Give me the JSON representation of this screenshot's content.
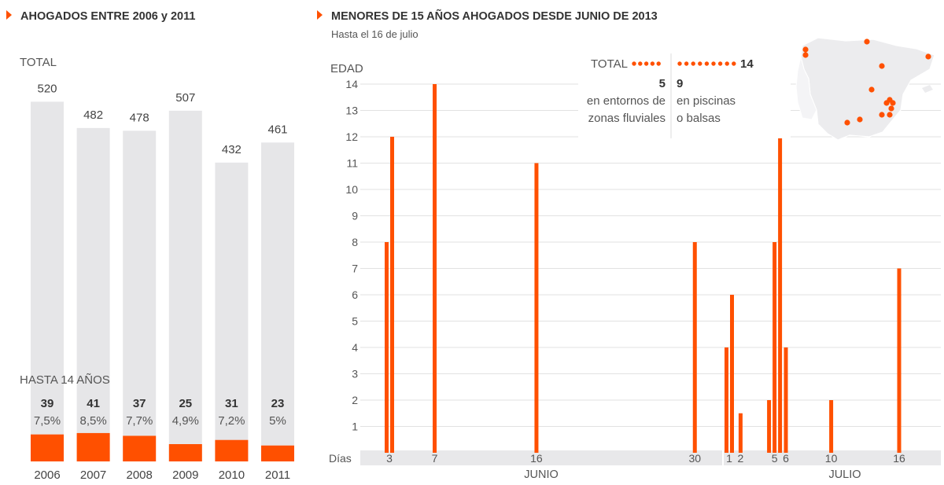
{
  "accent": "#ff5000",
  "bar_bg": "#e6e6e8",
  "chart_data": [
    {
      "type": "bar",
      "title": "AHOGADOS ENTRE 2006 y 2011",
      "total_label": "TOTAL",
      "minor_label": "HASTA 14 AÑOS",
      "categories": [
        "2006",
        "2007",
        "2008",
        "2009",
        "2010",
        "2011"
      ],
      "series": [
        {
          "name": "TOTAL",
          "values": [
            520,
            482,
            478,
            507,
            432,
            461
          ]
        },
        {
          "name": "HASTA 14 AÑOS",
          "values": [
            39,
            41,
            37,
            25,
            31,
            23
          ]
        }
      ],
      "percent_labels": [
        "7,5%",
        "8,5%",
        "7,7%",
        "4,9%",
        "7,2%",
        "5%"
      ],
      "value_labels": [
        "520",
        "482",
        "478",
        "507",
        "432",
        "461"
      ],
      "minor_value_labels": [
        "39",
        "41",
        "37",
        "25",
        "31",
        "23"
      ]
    },
    {
      "type": "bar",
      "title": "MENORES DE 15 AÑOS AHOGADOS DESDE JUNIO DE 2013",
      "subtitle": "Hasta el 16 de julio",
      "ylabel": "EDAD",
      "xlabel": "Días",
      "ylim": [
        0,
        14
      ],
      "yticks": [
        "1",
        "2",
        "3",
        "4",
        "5",
        "6",
        "7",
        "8",
        "9",
        "10",
        "11",
        "12",
        "13",
        "14"
      ],
      "months": [
        {
          "label": "JUNIO"
        },
        {
          "label": "JULIO"
        }
      ],
      "x_ticks": [
        {
          "month": "junio",
          "day": "3"
        },
        {
          "month": "junio",
          "day": "7"
        },
        {
          "month": "junio",
          "day": "16"
        },
        {
          "month": "junio",
          "day": "30"
        },
        {
          "month": "julio",
          "day": "1"
        },
        {
          "month": "julio",
          "day": "2"
        },
        {
          "month": "julio",
          "day": "5"
        },
        {
          "month": "julio",
          "day": "6"
        },
        {
          "month": "julio",
          "day": "10"
        },
        {
          "month": "julio",
          "day": "16"
        }
      ],
      "points": [
        {
          "date": "2013-06-03",
          "age": 8
        },
        {
          "date": "2013-06-03",
          "age": 12
        },
        {
          "date": "2013-06-07",
          "age": 14
        },
        {
          "date": "2013-06-16",
          "age": 11
        },
        {
          "date": "2013-06-30",
          "age": 8
        },
        {
          "date": "2013-07-01",
          "age": 4
        },
        {
          "date": "2013-07-01",
          "age": 6
        },
        {
          "date": "2013-07-02",
          "age": 1.5
        },
        {
          "date": "2013-07-05",
          "age": 2
        },
        {
          "date": "2013-07-05",
          "age": 8
        },
        {
          "date": "2013-07-05",
          "age": 12
        },
        {
          "date": "2013-07-06",
          "age": 4
        },
        {
          "date": "2013-07-10",
          "age": 2
        },
        {
          "date": "2013-07-16",
          "age": 7
        }
      ],
      "legend": {
        "total_label": "TOTAL",
        "total_value": "14",
        "groups": [
          {
            "count": "5",
            "line1": "en entornos de",
            "line2": "zonas fluviales",
            "dots": 5
          },
          {
            "count": "9",
            "line1": "en piscinas",
            "line2": "o balsas",
            "dots": 9
          }
        ]
      }
    }
  ]
}
